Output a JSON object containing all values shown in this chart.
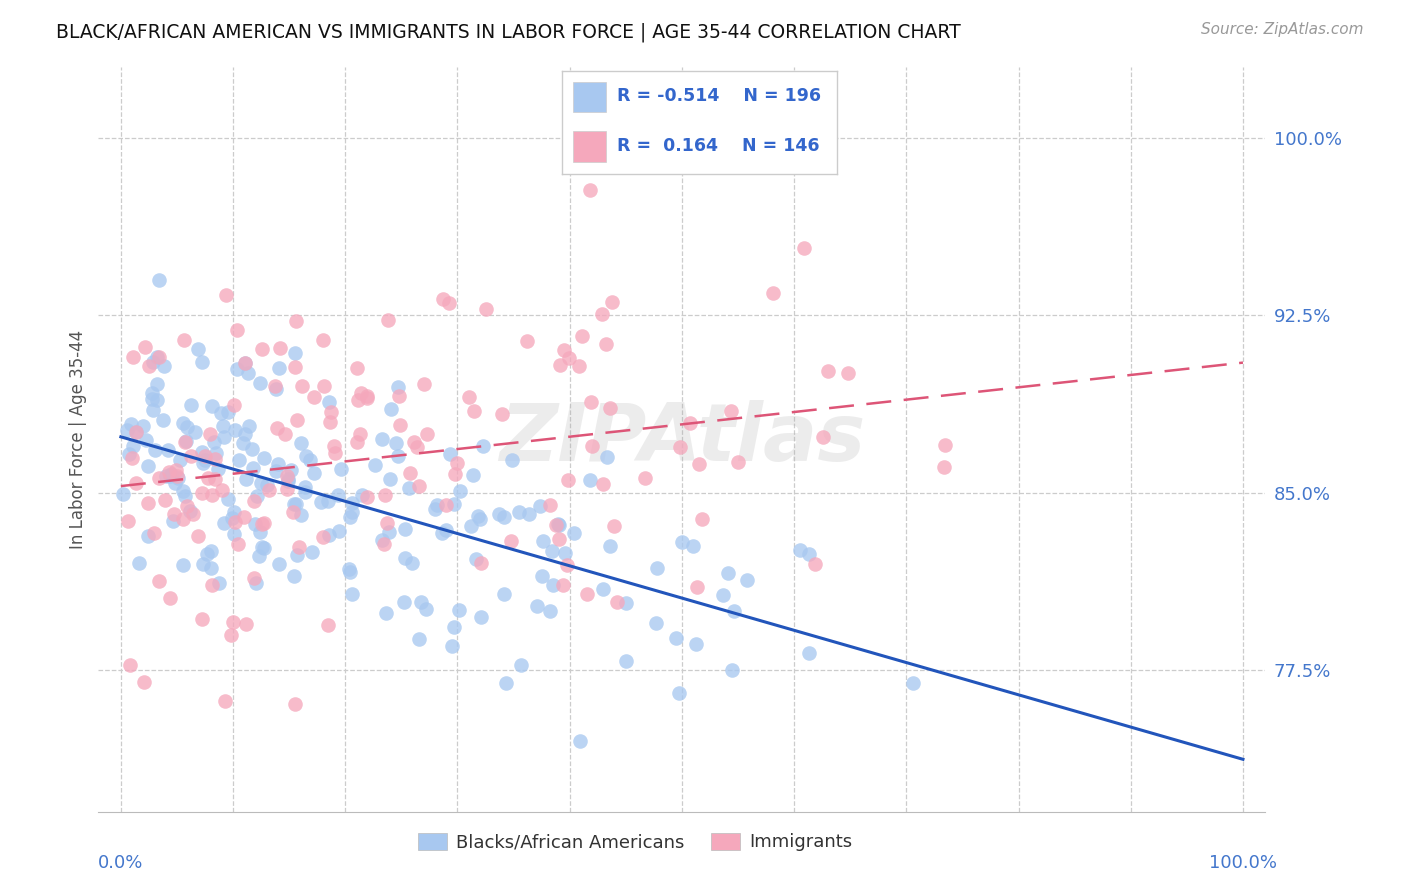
{
  "title": "BLACK/AFRICAN AMERICAN VS IMMIGRANTS IN LABOR FORCE | AGE 35-44 CORRELATION CHART",
  "source": "Source: ZipAtlas.com",
  "ylabel": "In Labor Force | Age 35-44",
  "ytick_labels": [
    "77.5%",
    "85.0%",
    "92.5%",
    "100.0%"
  ],
  "ytick_values": [
    0.775,
    0.85,
    0.925,
    1.0
  ],
  "xlim": [
    -0.02,
    1.02
  ],
  "ylim": [
    0.715,
    1.03
  ],
  "blue_color": "#A8C8F0",
  "pink_color": "#F5A8BC",
  "blue_line_color": "#2255BB",
  "pink_line_color": "#DD5577",
  "title_color": "#111111",
  "source_color": "#999999",
  "axis_label_color": "#4477CC",
  "legend_R_color": "#3366CC",
  "blue_R": -0.514,
  "blue_N": 196,
  "pink_R": 0.164,
  "pink_N": 146,
  "background_color": "#FFFFFF",
  "watermark": "ZIPAtlas",
  "grid_color": "#CCCCCC"
}
